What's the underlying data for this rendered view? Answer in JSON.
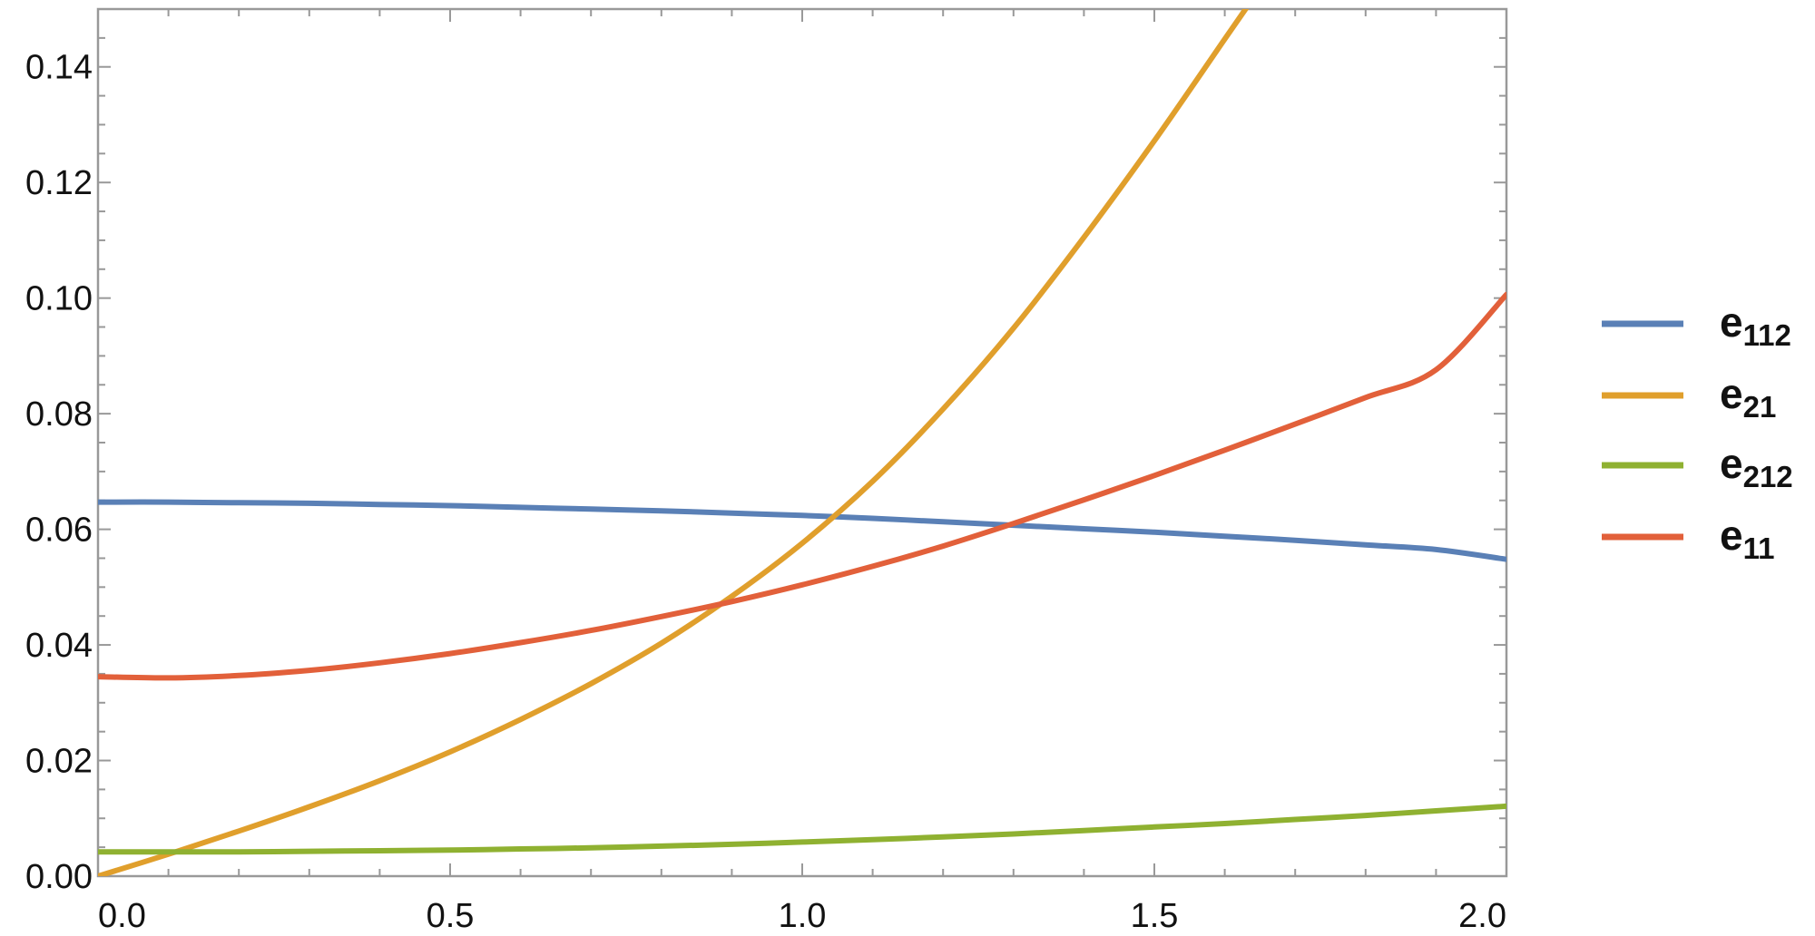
{
  "chart_data": {
    "type": "line",
    "title": "",
    "xlabel": "",
    "ylabel": "",
    "xlim": [
      0,
      2
    ],
    "ylim": [
      0,
      0.15
    ],
    "x_ticks": [
      "0.0",
      "0.5",
      "1.0",
      "1.5",
      "2.0"
    ],
    "y_ticks": [
      "0.00",
      "0.02",
      "0.04",
      "0.06",
      "0.08",
      "0.10",
      "0.12",
      "0.14"
    ],
    "grid": false,
    "legend_position": "right",
    "x": [
      0.0,
      0.1,
      0.2,
      0.3,
      0.4,
      0.5,
      0.6,
      0.7,
      0.8,
      0.9,
      1.0,
      1.1,
      1.2,
      1.3,
      1.4,
      1.5,
      1.6,
      1.7,
      1.8,
      1.9,
      2.0
    ],
    "series": [
      {
        "name_base": "e",
        "name_sub": "112",
        "color": "#5a80b6",
        "values": [
          0.0647,
          0.0647,
          0.0646,
          0.0645,
          0.0643,
          0.0641,
          0.0638,
          0.0635,
          0.0632,
          0.0628,
          0.0624,
          0.0619,
          0.0613,
          0.0607,
          0.0601,
          0.0595,
          0.0588,
          0.0581,
          0.0573,
          0.0565,
          0.0548
        ]
      },
      {
        "name_base": "e",
        "name_sub": "21",
        "color": "#e09f2c",
        "values": [
          0.0,
          0.0038,
          0.0078,
          0.012,
          0.0165,
          0.0215,
          0.0271,
          0.0333,
          0.0403,
          0.0484,
          0.0576,
          0.0683,
          0.0808,
          0.0948,
          0.1105,
          0.1272,
          0.1448,
          null,
          null,
          null,
          null
        ]
      },
      {
        "name_base": "e",
        "name_sub": "212",
        "color": "#8fb131",
        "values": [
          0.0042,
          0.0042,
          0.0042,
          0.0043,
          0.0044,
          0.0045,
          0.0047,
          0.0049,
          0.0052,
          0.0055,
          0.0059,
          0.0063,
          0.0068,
          0.0073,
          0.0079,
          0.0085,
          0.0091,
          0.0098,
          0.0105,
          0.0113,
          0.0121
        ]
      },
      {
        "name_base": "e",
        "name_sub": "11",
        "color": "#e2603a",
        "values": [
          0.0345,
          0.0343,
          0.0347,
          0.0356,
          0.0369,
          0.0385,
          0.0404,
          0.0425,
          0.0449,
          0.0475,
          0.0504,
          0.0536,
          0.0571,
          0.061,
          0.0651,
          0.0693,
          0.0737,
          0.0782,
          0.0828,
          0.0876,
          0.1006
        ]
      }
    ]
  }
}
